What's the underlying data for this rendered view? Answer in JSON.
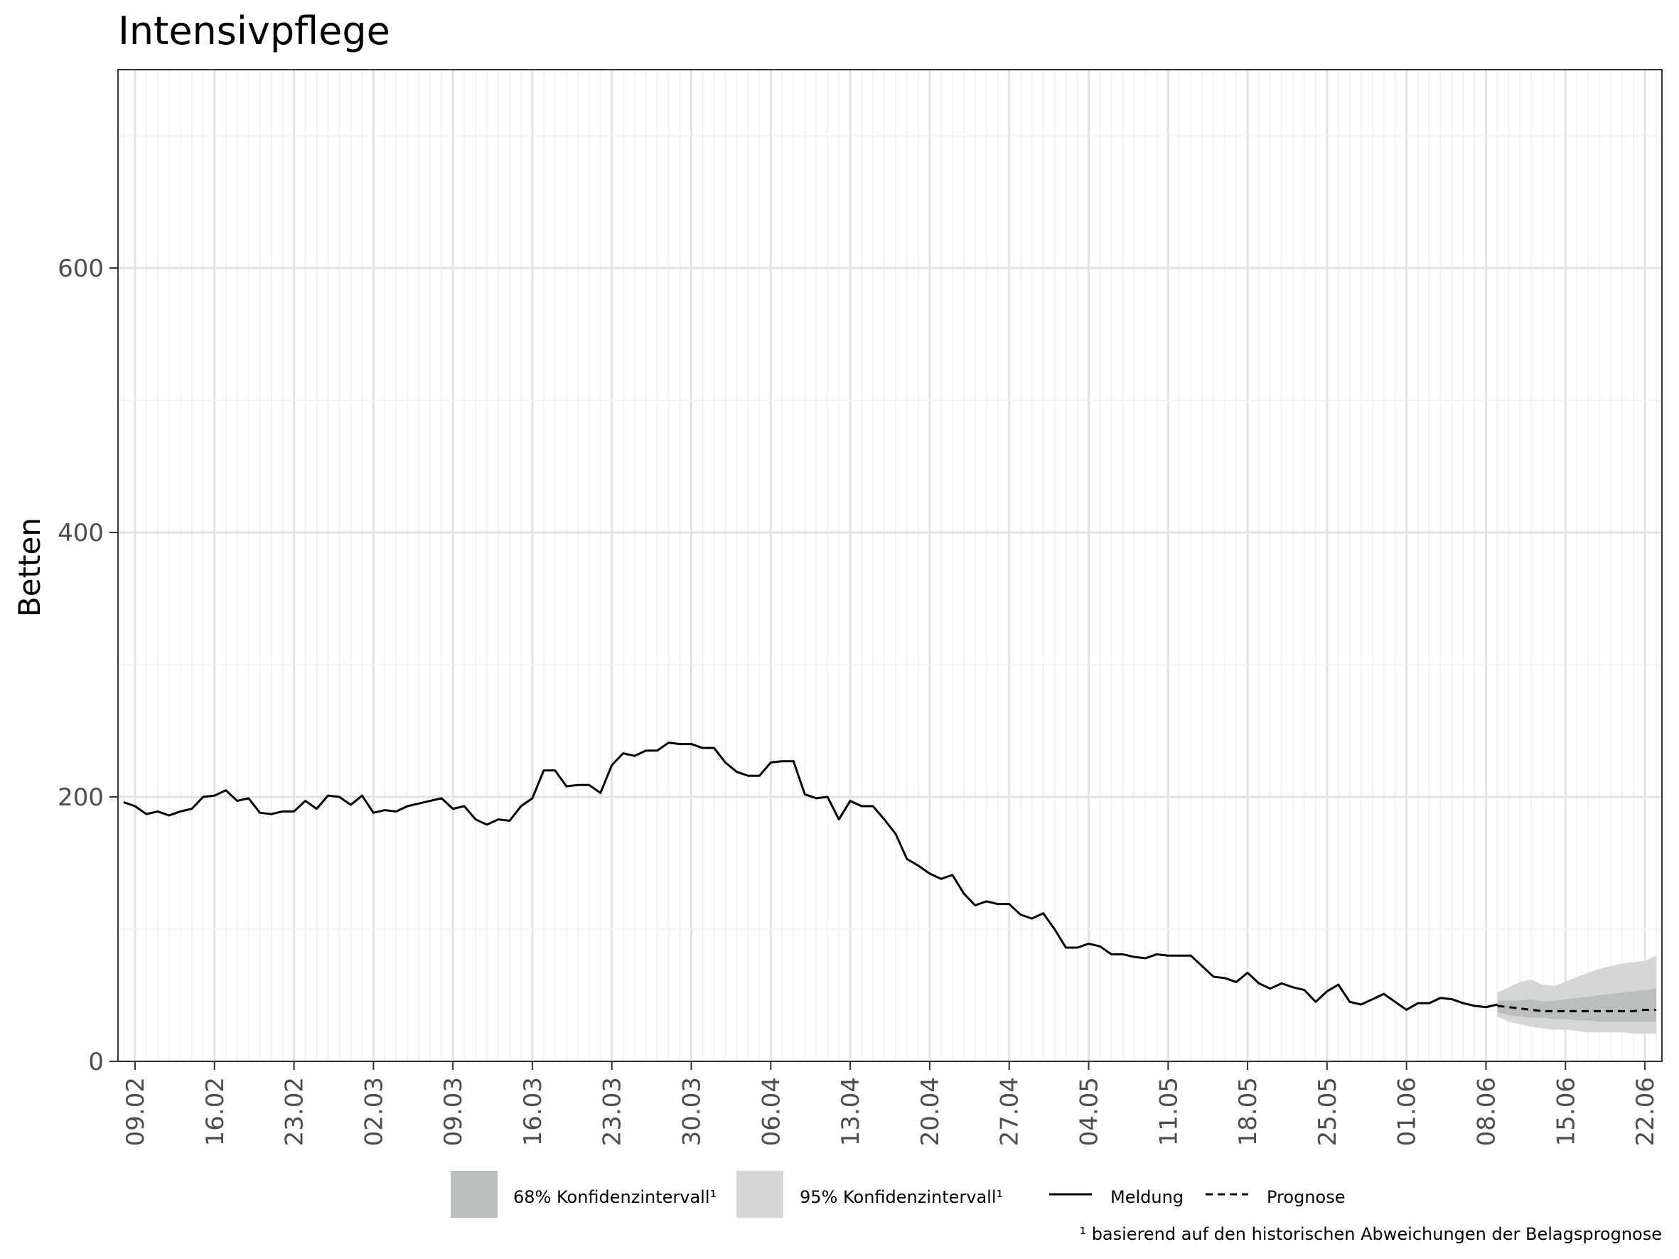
{
  "chart_data": {
    "type": "line",
    "title": "Intensivpflege",
    "ylabel": "Betten",
    "xlabel": "",
    "ylim": [
      0,
      750
    ],
    "y_ticks": [
      0,
      200,
      400,
      600
    ],
    "grid": true,
    "x_tick_labels": [
      "09.02",
      "16.02",
      "23.02",
      "02.03",
      "09.03",
      "16.03",
      "23.03",
      "30.03",
      "06.04",
      "13.04",
      "20.04",
      "27.04",
      "04.05",
      "11.05",
      "18.05",
      "25.05",
      "01.06",
      "08.06",
      "15.06",
      "22.06"
    ],
    "x_range_days": [
      -1.5,
      134.5
    ],
    "series": [
      {
        "name": "Meldung",
        "style": "solid",
        "color": "#000000",
        "x": [
          -1,
          0,
          1,
          2,
          3,
          4,
          5,
          6,
          7,
          8,
          9,
          10,
          11,
          12,
          13,
          14,
          15,
          16,
          17,
          18,
          19,
          20,
          21,
          22,
          23,
          24,
          25,
          26,
          27,
          28,
          29,
          30,
          31,
          32,
          33,
          34,
          35,
          36,
          37,
          38,
          39,
          40,
          41,
          42,
          43,
          44,
          45,
          46,
          47,
          48,
          49,
          50,
          51,
          52,
          53,
          54,
          55,
          56,
          57,
          58,
          59,
          60,
          61,
          62,
          63,
          64,
          65,
          66,
          67,
          68,
          69,
          70,
          71,
          72,
          73,
          74,
          75,
          76,
          77,
          78,
          79,
          80,
          81,
          82,
          83,
          84,
          85,
          86,
          87,
          88,
          89,
          90,
          91,
          92,
          93,
          94,
          95,
          96,
          97,
          98,
          99,
          100,
          101,
          102,
          103,
          104,
          105,
          106,
          107,
          108,
          109,
          110,
          111,
          112,
          113,
          114,
          115,
          116,
          117,
          118,
          119,
          120,
          121,
          122,
          123,
          124,
          125,
          126,
          127,
          128,
          129,
          130,
          131,
          132,
          133,
          134
        ],
        "y": [
          196,
          193,
          187,
          189,
          186,
          189,
          191,
          200,
          201,
          205,
          197,
          199,
          188,
          187,
          189,
          189,
          197,
          191,
          201,
          200,
          194,
          201,
          188,
          190,
          189,
          193,
          195,
          197,
          199,
          191,
          193,
          183,
          179,
          183,
          182,
          193,
          199,
          220,
          220,
          208,
          209,
          209,
          203,
          224,
          233,
          231,
          235,
          235,
          241,
          240,
          240,
          237,
          237,
          226,
          219,
          216,
          216,
          226,
          227,
          227,
          202,
          199,
          200,
          183,
          197,
          193,
          193,
          183,
          172,
          153,
          148,
          142,
          138,
          141,
          127,
          118,
          121,
          119,
          119,
          111,
          108,
          112,
          100,
          86,
          86,
          89,
          87,
          81,
          81,
          79,
          78,
          81,
          80,
          80,
          80,
          72,
          64,
          63,
          60,
          67,
          59,
          55,
          59,
          56,
          54,
          45,
          53,
          58,
          45,
          43,
          47,
          51,
          45,
          39,
          44,
          44,
          48,
          47,
          44,
          42,
          41,
          43,
          null,
          null,
          null,
          null,
          null,
          null,
          null,
          null,
          null,
          null,
          null,
          null,
          null,
          null
        ]
      },
      {
        "name": "Prognose",
        "style": "dashed",
        "color": "#000000",
        "x": [
          120,
          121,
          122,
          123,
          124,
          125,
          126,
          127,
          128,
          129,
          130,
          131,
          132,
          133,
          134
        ],
        "y": [
          42,
          41,
          40,
          39,
          38,
          38,
          38,
          38,
          38,
          38,
          38,
          38,
          38,
          39,
          39
        ]
      }
    ],
    "bands": [
      {
        "name": "95% Konfidenzintervall¹",
        "color": "#d4d7d6",
        "x": [
          120,
          121,
          122,
          123,
          124,
          125,
          126,
          127,
          128,
          129,
          130,
          131,
          132,
          133,
          134
        ],
        "lower": [
          34,
          30,
          28,
          26,
          25,
          24,
          24,
          23,
          22,
          22,
          22,
          22,
          21,
          21,
          21
        ],
        "upper": [
          52,
          56,
          60,
          62,
          58,
          57,
          60,
          64,
          67,
          70,
          72,
          74,
          75,
          76,
          80
        ]
      },
      {
        "name": "68% Konfidenzintervall¹",
        "color": "#b9bfbc",
        "x": [
          120,
          121,
          122,
          123,
          124,
          125,
          126,
          127,
          128,
          129,
          130,
          131,
          132,
          133,
          134
        ],
        "lower": [
          37,
          35,
          34,
          33,
          33,
          32,
          32,
          31,
          31,
          30,
          30,
          30,
          30,
          30,
          30
        ],
        "upper": [
          46,
          46,
          46,
          47,
          45,
          46,
          47,
          48,
          49,
          50,
          51,
          52,
          53,
          54,
          55
        ]
      }
    ]
  },
  "legend": {
    "ci68_label": "68% Konfidenzintervall¹",
    "ci95_label": "95% Konfidenzintervall¹",
    "meldung_label": "Meldung",
    "prognose_label": "Prognose",
    "ci68_color": "#b9bfbc",
    "ci95_color": "#d4d7d6"
  },
  "footnote": "¹ basierend auf den historischen Abweichungen der Belagsprognose"
}
